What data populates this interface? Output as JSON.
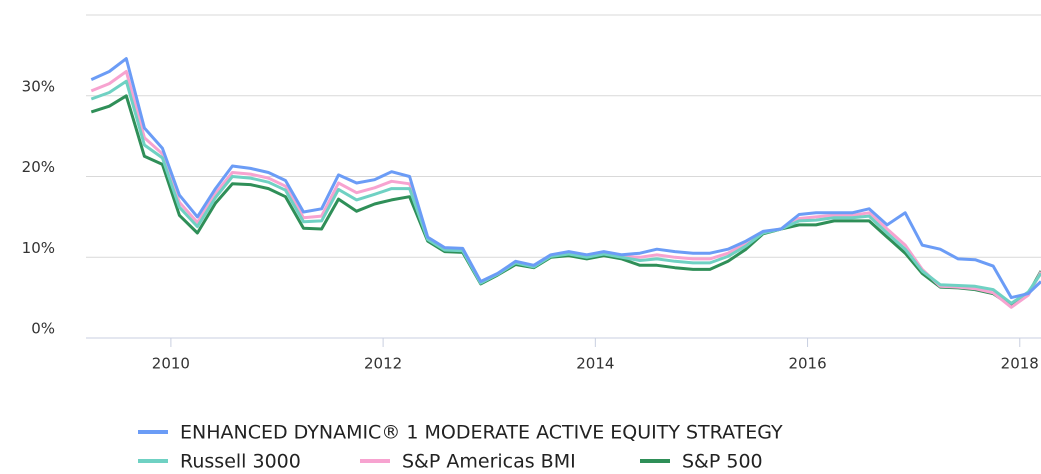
{
  "chart_data": {
    "type": "line",
    "x": [
      2009.25,
      2009.42,
      2009.58,
      2009.75,
      2009.92,
      2010.08,
      2010.25,
      2010.42,
      2010.58,
      2010.75,
      2010.92,
      2011.08,
      2011.25,
      2011.42,
      2011.58,
      2011.75,
      2011.92,
      2012.08,
      2012.25,
      2012.42,
      2012.58,
      2012.75,
      2012.92,
      2013.08,
      2013.25,
      2013.42,
      2013.58,
      2013.75,
      2013.92,
      2014.08,
      2014.25,
      2014.42,
      2014.58,
      2014.75,
      2014.92,
      2015.08,
      2015.25,
      2015.42,
      2015.58,
      2015.75,
      2015.92,
      2016.08,
      2016.25,
      2016.42,
      2016.58,
      2016.75,
      2016.92,
      2017.08,
      2017.25,
      2017.42,
      2017.58,
      2017.75,
      2017.92,
      2018.08,
      2018.2
    ],
    "series": [
      {
        "name": "ENHANCED DYNAMIC® 1 MODERATE ACTIVE EQUITY STRATEGY",
        "color": "#6b9cf6",
        "values": [
          32,
          33,
          34.6,
          26,
          23.5,
          17.7,
          15,
          18.5,
          21.3,
          21,
          20.5,
          19.5,
          15.6,
          16,
          20.2,
          19.2,
          19.6,
          20.6,
          20,
          12.5,
          11.2,
          11.1,
          7,
          8,
          9.5,
          9,
          10.3,
          10.7,
          10.3,
          10.7,
          10.3,
          10.5,
          11,
          10.7,
          10.5,
          10.5,
          11,
          12,
          13.2,
          13.5,
          15.3,
          15.5,
          15.5,
          15.5,
          16,
          14,
          15.5,
          11.5,
          11,
          9.8,
          9.7,
          8.9,
          5,
          5.5,
          7
        ]
      },
      {
        "name": "Russell 3000",
        "color": "#6fd1c3",
        "values": [
          29.6,
          30.4,
          31.8,
          23.9,
          22.3,
          16.2,
          13.8,
          17.4,
          20,
          19.8,
          19.3,
          18.3,
          14.4,
          14.5,
          18.4,
          17.1,
          17.8,
          18.5,
          18.5,
          12.2,
          10.9,
          10.8,
          6.8,
          7.9,
          9.3,
          8.8,
          10.1,
          10.4,
          10,
          10.4,
          10,
          9.6,
          9.8,
          9.5,
          9.3,
          9.3,
          10.1,
          11.4,
          13,
          13.5,
          14.5,
          14.6,
          14.9,
          14.9,
          15.1,
          13,
          11,
          8.3,
          6.6,
          6.5,
          6.4,
          6,
          4.3,
          5.7,
          8
        ]
      },
      {
        "name": "S&P Americas BMI",
        "color": "#f7a3d0",
        "values": [
          30.6,
          31.5,
          33,
          24.8,
          22.8,
          16.8,
          14.3,
          17.9,
          20.5,
          20.3,
          19.8,
          18.8,
          14.9,
          15.1,
          19.2,
          18,
          18.6,
          19.4,
          19.1,
          12.3,
          11,
          10.9,
          6.9,
          7.9,
          9.4,
          8.9,
          10.2,
          10.5,
          10.1,
          10.5,
          10.1,
          10,
          10.3,
          10,
          9.8,
          9.8,
          10.5,
          11.7,
          13.1,
          13.5,
          14.8,
          15,
          15.2,
          15.2,
          15.5,
          13.5,
          11.5,
          8.5,
          6.4,
          6.3,
          6.1,
          5.6,
          3.8,
          5.3,
          8.2
        ]
      },
      {
        "name": "S&P 500",
        "color": "#2f8f58",
        "values": [
          28,
          28.7,
          30,
          22.5,
          21.5,
          15.2,
          13,
          16.7,
          19.1,
          19,
          18.5,
          17.5,
          13.6,
          13.5,
          17.2,
          15.7,
          16.6,
          17.1,
          17.5,
          12,
          10.7,
          10.6,
          6.7,
          7.8,
          9.1,
          8.7,
          10,
          10.2,
          9.8,
          10.2,
          9.8,
          9,
          9,
          8.7,
          8.5,
          8.5,
          9.5,
          11,
          12.9,
          13.5,
          14,
          14,
          14.5,
          14.5,
          14.5,
          12.5,
          10.5,
          8,
          6.3,
          6.2,
          6,
          5.5,
          4,
          5.5,
          8.3
        ]
      }
    ],
    "xlim": [
      2009.2,
      2018.2
    ],
    "xticks": [
      2010,
      2012,
      2014,
      2016,
      2018
    ],
    "ylim": [
      0,
      40
    ],
    "yticks": [
      {
        "value": 0,
        "label": "0%"
      },
      {
        "value": 10,
        "label": "10%"
      },
      {
        "value": 20,
        "label": "20%"
      },
      {
        "value": 30,
        "label": "30%"
      }
    ],
    "grid": true,
    "legend": "bottom"
  }
}
